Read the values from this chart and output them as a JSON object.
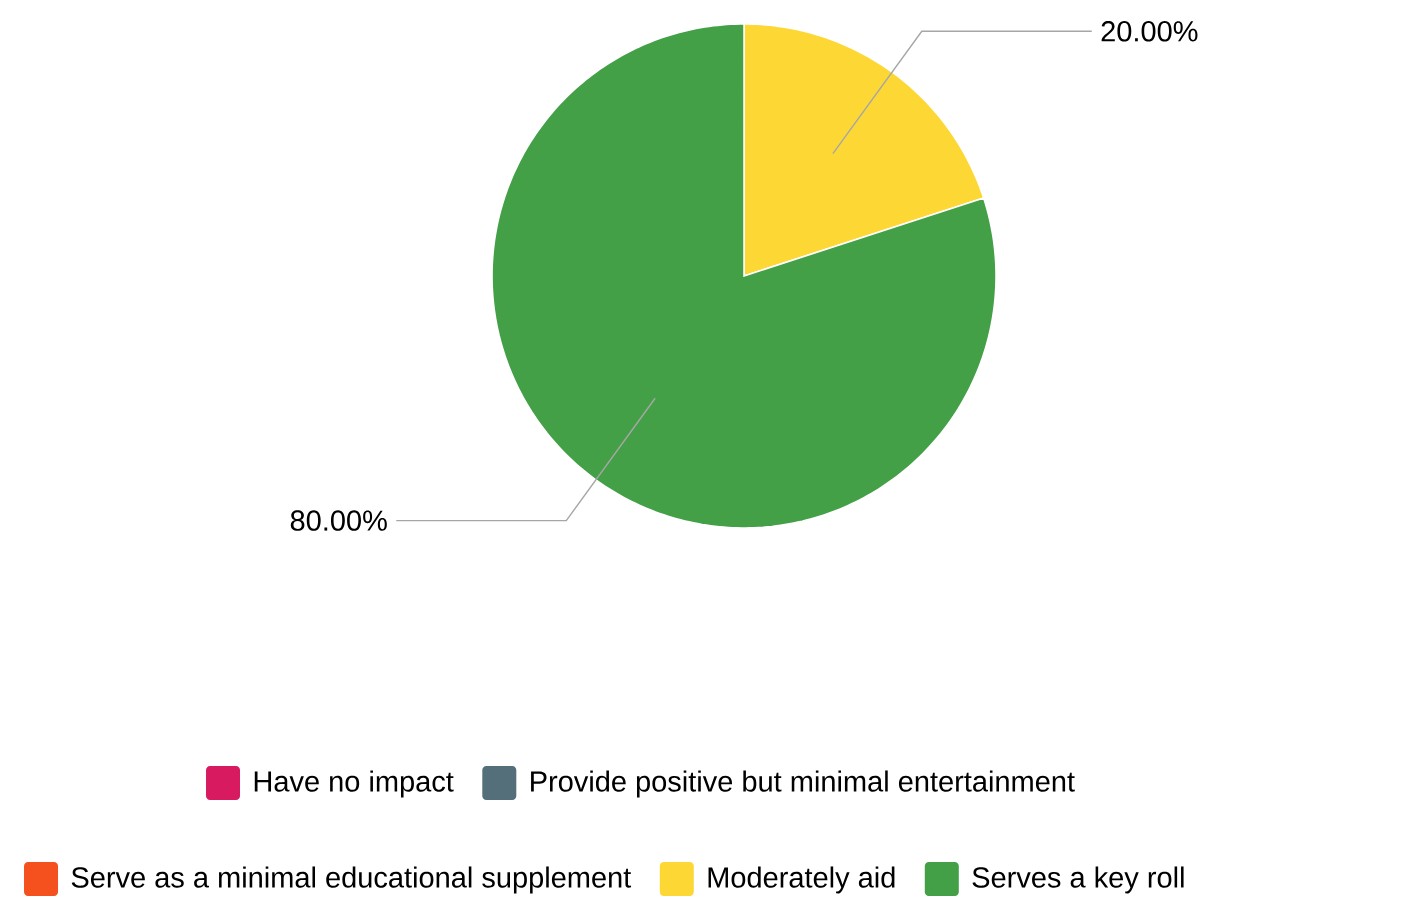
{
  "chart_data": {
    "type": "pie",
    "categories": [
      "Have no impact",
      "Provide positive but minimal entertainment",
      "Serve as a minimal educational supplement",
      "Moderately aid",
      "Serves a key roll"
    ],
    "values": [
      0,
      0,
      0,
      20,
      80
    ],
    "colors": [
      "#d81b60",
      "#546e7a",
      "#f4511e",
      "#fdd835",
      "#43a047"
    ],
    "value_labels": [
      null,
      null,
      null,
      "20.00%",
      "80.00%"
    ],
    "legend": "bottom"
  }
}
